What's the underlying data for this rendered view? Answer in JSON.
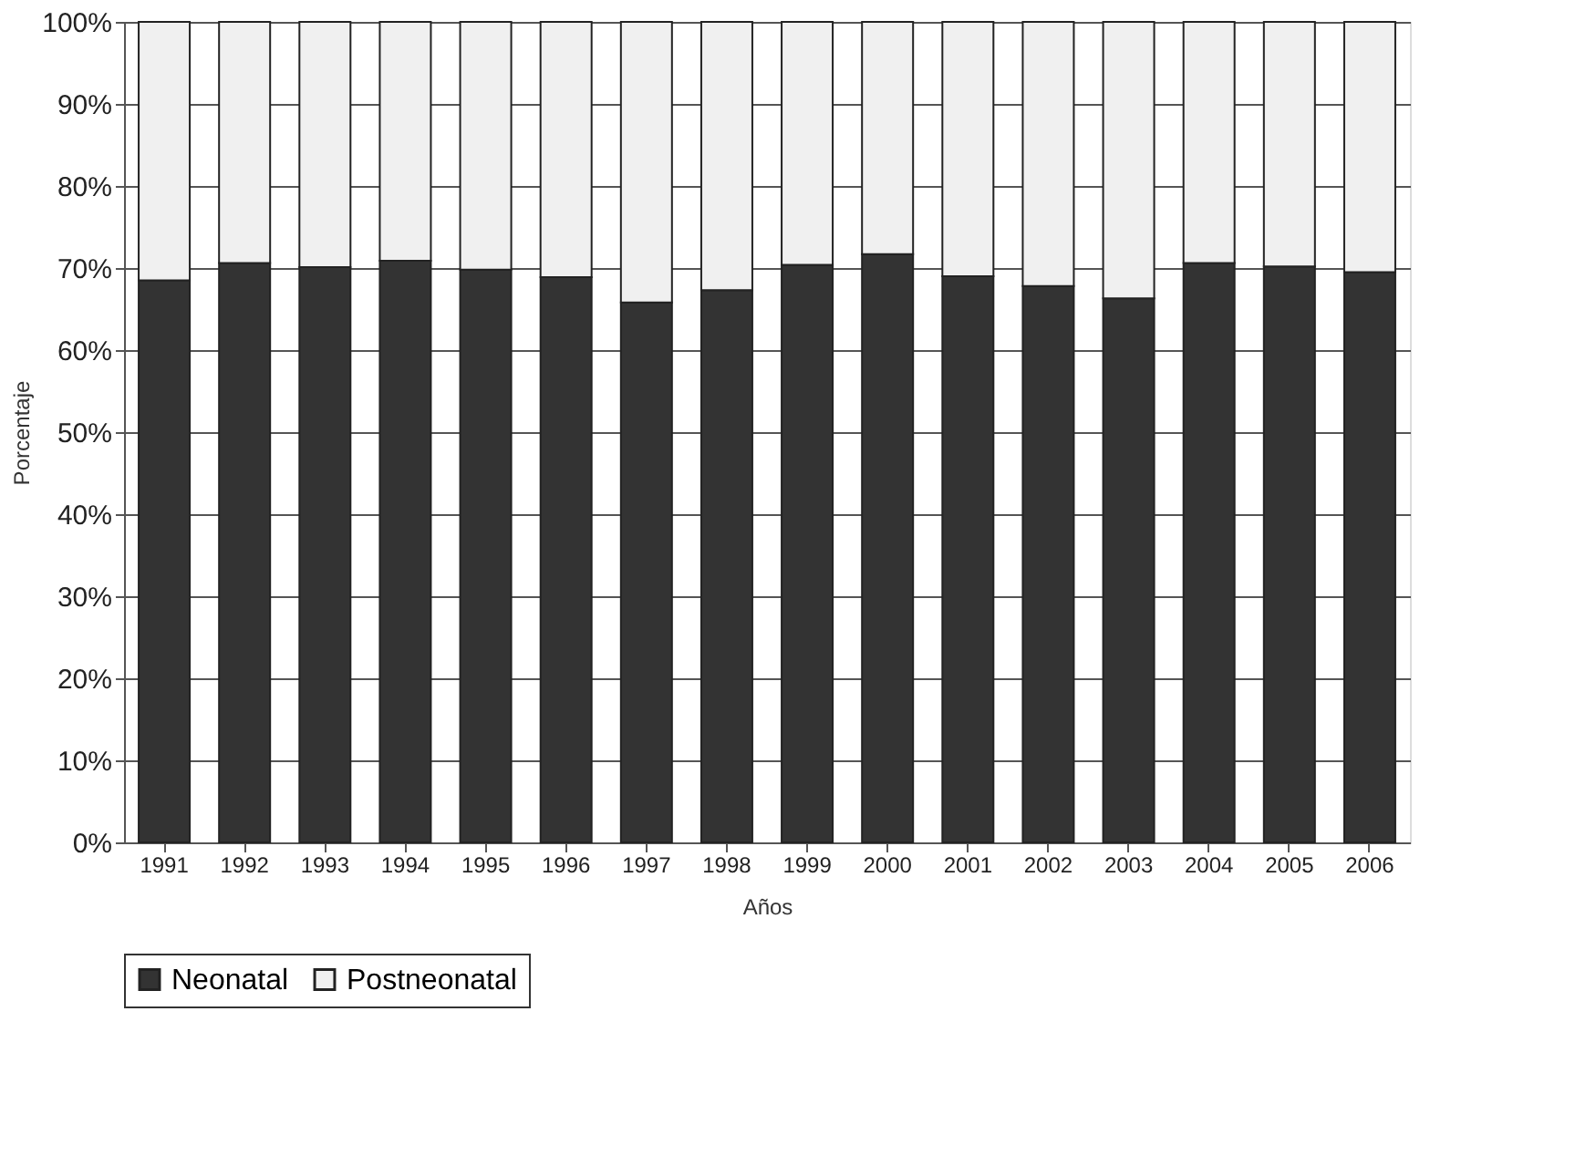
{
  "chart_data": {
    "type": "bar",
    "stacked": true,
    "xlabel": "Años",
    "ylabel": "Porcentaje",
    "categories": [
      "1991",
      "1992",
      "1993",
      "1994",
      "1995",
      "1996",
      "1997",
      "1998",
      "1999",
      "2000",
      "2001",
      "2002",
      "2003",
      "2004",
      "2005",
      "2006"
    ],
    "series": [
      {
        "name": "Neonatal",
        "color": "#333333",
        "values": [
          68.5,
          70.6,
          70.1,
          70.9,
          69.8,
          68.9,
          65.8,
          67.3,
          70.4,
          71.7,
          69.0,
          67.8,
          66.3,
          70.6,
          70.2,
          69.5
        ]
      },
      {
        "name": "Postneonatal",
        "color": "#f0f0f0",
        "values": [
          31.5,
          29.4,
          29.9,
          29.1,
          30.2,
          31.1,
          34.2,
          32.7,
          29.6,
          28.3,
          31.0,
          32.2,
          33.7,
          29.4,
          29.8,
          30.5
        ]
      }
    ],
    "ylim": [
      0,
      100
    ],
    "yticks": [
      {
        "value": 0,
        "label": "0%"
      },
      {
        "value": 10,
        "label": "10%"
      },
      {
        "value": 20,
        "label": "20%"
      },
      {
        "value": 30,
        "label": "30%"
      },
      {
        "value": 40,
        "label": "40%"
      },
      {
        "value": 50,
        "label": "50%"
      },
      {
        "value": 60,
        "label": "60%"
      },
      {
        "value": 70,
        "label": "70%"
      },
      {
        "value": 80,
        "label": "80%"
      },
      {
        "value": 90,
        "label": "90%"
      },
      {
        "value": 100,
        "label": "100%"
      }
    ],
    "grid": "y",
    "legend": "bottom"
  }
}
